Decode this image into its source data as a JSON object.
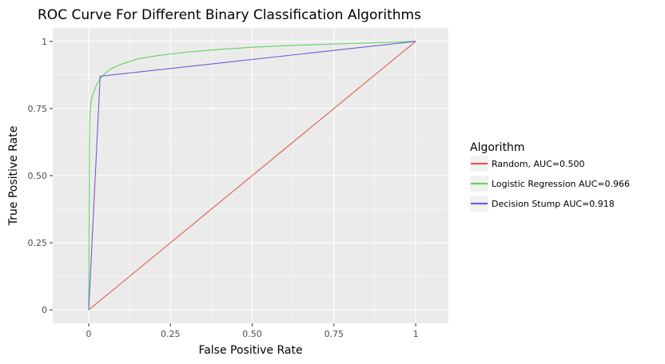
{
  "chart_data": {
    "type": "line",
    "title": "ROC Curve For Different Binary Classification Algorithms",
    "xlabel": "False Positive Rate",
    "ylabel": "True Positive Rate",
    "xlim": [
      -0.11,
      1.1
    ],
    "ylim": [
      -0.05,
      1.05
    ],
    "x_ticks": [
      0,
      0.25,
      0.5,
      0.75,
      1
    ],
    "x_tick_labels": [
      "0",
      "0.25",
      "0.50",
      "0.75",
      "1"
    ],
    "y_ticks": [
      0,
      0.25,
      0.5,
      0.75,
      1
    ],
    "y_tick_labels": [
      "0",
      "0.25",
      "0.50",
      "0.75",
      "1"
    ],
    "grid": true,
    "legend": {
      "title": "Algorithm",
      "placement": "right"
    },
    "colors": {
      "panel_background": "#ebebeb",
      "grid": "#ffffff"
    },
    "series": [
      {
        "name": "Random, AUC=0.500",
        "color": "#e05c4b",
        "points": [
          [
            0,
            0
          ],
          [
            1,
            1
          ]
        ]
      },
      {
        "name": "Logistic Regression AUC=0.966",
        "color": "#5dd65b",
        "points": [
          [
            0,
            0
          ],
          [
            0.001,
            0.3
          ],
          [
            0.002,
            0.6
          ],
          [
            0.003,
            0.7
          ],
          [
            0.005,
            0.75
          ],
          [
            0.008,
            0.78
          ],
          [
            0.012,
            0.8
          ],
          [
            0.018,
            0.82
          ],
          [
            0.025,
            0.84
          ],
          [
            0.035,
            0.86
          ],
          [
            0.05,
            0.88
          ],
          [
            0.065,
            0.895
          ],
          [
            0.08,
            0.905
          ],
          [
            0.1,
            0.915
          ],
          [
            0.125,
            0.925
          ],
          [
            0.15,
            0.935
          ],
          [
            0.2,
            0.945
          ],
          [
            0.25,
            0.953
          ],
          [
            0.3,
            0.96
          ],
          [
            0.35,
            0.965
          ],
          [
            0.4,
            0.97
          ],
          [
            0.45,
            0.974
          ],
          [
            0.5,
            0.978
          ],
          [
            0.6,
            0.984
          ],
          [
            0.7,
            0.988
          ],
          [
            0.8,
            0.992
          ],
          [
            0.9,
            0.996
          ],
          [
            1,
            1
          ]
        ]
      },
      {
        "name": "Decision Stump AUC=0.918",
        "color": "#6a5fd9",
        "points": [
          [
            0,
            0
          ],
          [
            0.035,
            0.87
          ],
          [
            1,
            1
          ]
        ]
      }
    ]
  }
}
